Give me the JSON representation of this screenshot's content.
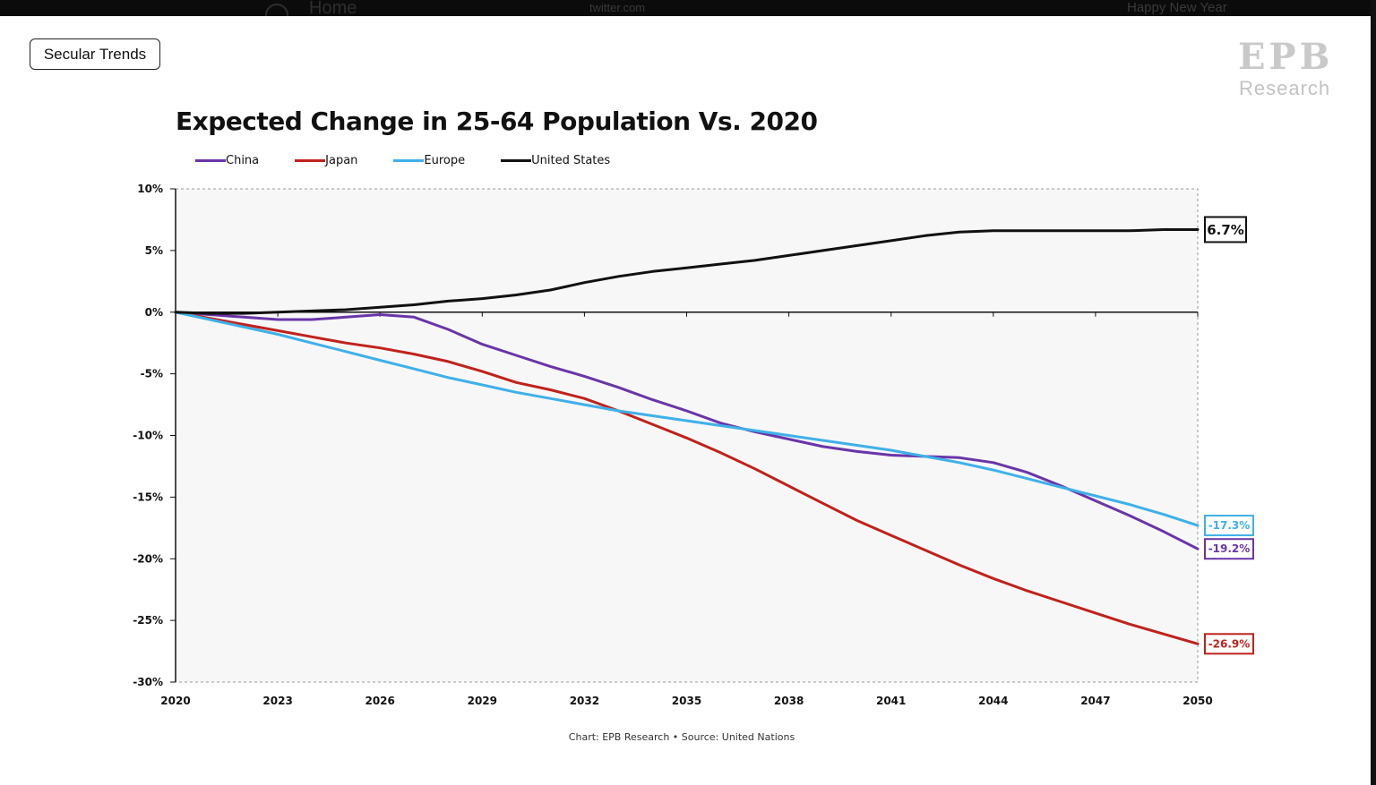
{
  "topbar": {
    "home_label": "Home",
    "site_label": "twitter.com",
    "banner_label": "Happy New Year"
  },
  "tag_label": "Secular Trends",
  "logo": {
    "mark": "EPB",
    "word": "Research"
  },
  "source_text": "Chart: EPB Research  •  Source: United Nations",
  "chart_data": {
    "type": "line",
    "title": "Expected Change in 25-64 Population Vs. 2020",
    "xlabel": "",
    "ylabel": "",
    "xlim": [
      2020,
      2050
    ],
    "ylim": [
      -30,
      10
    ],
    "x_ticks": [
      2020,
      2023,
      2026,
      2029,
      2032,
      2035,
      2038,
      2041,
      2044,
      2047,
      2050
    ],
    "y_ticks": [
      10,
      5,
      0,
      -5,
      -10,
      -15,
      -20,
      -25,
      -30
    ],
    "y_tick_labels": [
      "10%",
      "5%",
      "0%",
      "-5%",
      "-10%",
      "-15%",
      "-20%",
      "-25%",
      "-30%"
    ],
    "legend_position": "top-left",
    "grid": false,
    "x": [
      2020,
      2021,
      2022,
      2023,
      2024,
      2025,
      2026,
      2027,
      2028,
      2029,
      2030,
      2031,
      2032,
      2033,
      2034,
      2035,
      2036,
      2037,
      2038,
      2039,
      2040,
      2041,
      2042,
      2043,
      2044,
      2045,
      2046,
      2047,
      2048,
      2049,
      2050
    ],
    "series": [
      {
        "name": "China",
        "color": "#6a35a8",
        "end_label": "-19.2%",
        "values": [
          0,
          -0.2,
          -0.4,
          -0.6,
          -0.6,
          -0.4,
          -0.2,
          -0.4,
          -1.4,
          -2.6,
          -3.5,
          -4.4,
          -5.2,
          -6.1,
          -7.1,
          -8.0,
          -9.0,
          -9.7,
          -10.3,
          -10.9,
          -11.3,
          -11.6,
          -11.7,
          -11.8,
          -12.2,
          -13.0,
          -14.1,
          -15.3,
          -16.5,
          -17.8,
          -19.2
        ]
      },
      {
        "name": "Japan",
        "color": "#c0221c",
        "end_label": "-26.9%",
        "values": [
          0,
          -0.5,
          -1.0,
          -1.5,
          -2.0,
          -2.5,
          -2.9,
          -3.4,
          -4.0,
          -4.8,
          -5.7,
          -6.3,
          -7.0,
          -8.0,
          -9.1,
          -10.2,
          -11.4,
          -12.7,
          -14.1,
          -15.5,
          -16.9,
          -18.1,
          -19.3,
          -20.5,
          -21.6,
          -22.6,
          -23.5,
          -24.4,
          -25.3,
          -26.1,
          -26.9
        ]
      },
      {
        "name": "Europe",
        "color": "#3fb0e8",
        "end_label": "-17.3%",
        "values": [
          0,
          -0.6,
          -1.2,
          -1.8,
          -2.5,
          -3.2,
          -3.9,
          -4.6,
          -5.3,
          -5.9,
          -6.5,
          -7.0,
          -7.5,
          -8.0,
          -8.4,
          -8.8,
          -9.2,
          -9.6,
          -10.0,
          -10.4,
          -10.8,
          -11.2,
          -11.7,
          -12.2,
          -12.8,
          -13.5,
          -14.2,
          -14.9,
          -15.6,
          -16.4,
          -17.3
        ]
      },
      {
        "name": "United States",
        "color": "#111111",
        "end_label": "6.7%",
        "values": [
          0,
          -0.1,
          -0.1,
          0,
          0.1,
          0.2,
          0.4,
          0.6,
          0.9,
          1.1,
          1.4,
          1.8,
          2.4,
          2.9,
          3.3,
          3.6,
          3.9,
          4.2,
          4.6,
          5.0,
          5.4,
          5.8,
          6.2,
          6.5,
          6.6,
          6.6,
          6.6,
          6.6,
          6.6,
          6.7,
          6.7
        ]
      }
    ]
  }
}
